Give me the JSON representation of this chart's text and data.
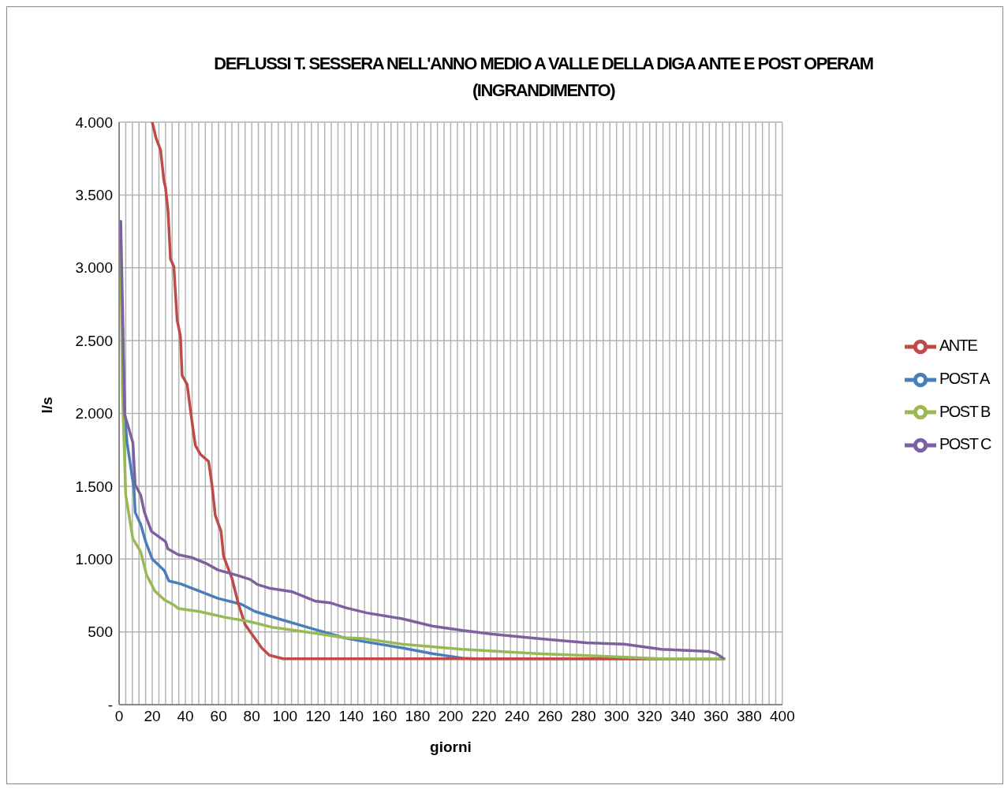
{
  "chart_data": {
    "type": "line",
    "title": "DEFLUSSI T. SESSERA NELL'ANNO MEDIO A VALLE DELLA DIGA ANTE E POST OPERAM (INGRANDIMENTO)",
    "xlabel": "giorni",
    "ylabel": "l/s",
    "xlim": [
      0,
      400
    ],
    "xticks": [
      0,
      {
        "value": 4,
        "label": null
      },
      {
        "value": 8,
        "label": null
      },
      {
        "value": 12,
        "label": null
      },
      {
        "value": 16,
        "label": null
      },
      20,
      {
        "value": 24,
        "label": null
      },
      {
        "value": 28,
        "label": null
      },
      {
        "value": 32,
        "label": null
      },
      {
        "value": 36,
        "label": null
      },
      40,
      {
        "value": 44,
        "label": null
      },
      {
        "value": 48,
        "label": null
      },
      {
        "value": 52,
        "label": null
      },
      {
        "value": 56,
        "label": null
      },
      60,
      {
        "value": 64,
        "label": null
      },
      {
        "value": 68,
        "label": null
      },
      {
        "value": 72,
        "label": null
      },
      {
        "value": 76,
        "label": null
      },
      80,
      {
        "value": 84,
        "label": null
      },
      {
        "value": 88,
        "label": null
      },
      {
        "value": 92,
        "label": null
      },
      {
        "value": 96,
        "label": null
      },
      100,
      {
        "value": 104,
        "label": null
      },
      {
        "value": 108,
        "label": null
      },
      {
        "value": 112,
        "label": null
      },
      {
        "value": 116,
        "label": null
      },
      120,
      {
        "value": 124,
        "label": null
      },
      {
        "value": 128,
        "label": null
      },
      {
        "value": 132,
        "label": null
      },
      {
        "value": 136,
        "label": null
      },
      140,
      {
        "value": 144,
        "label": null
      },
      {
        "value": 148,
        "label": null
      },
      {
        "value": 152,
        "label": null
      },
      {
        "value": 156,
        "label": null
      },
      160,
      {
        "value": 164,
        "label": null
      },
      {
        "value": 168,
        "label": null
      },
      {
        "value": 172,
        "label": null
      },
      {
        "value": 176,
        "label": null
      },
      180,
      {
        "value": 184,
        "label": null
      },
      {
        "value": 188,
        "label": null
      },
      {
        "value": 192,
        "label": null
      },
      {
        "value": 196,
        "label": null
      },
      200,
      {
        "value": 204,
        "label": null
      },
      {
        "value": 208,
        "label": null
      },
      {
        "value": 212,
        "label": null
      },
      {
        "value": 216,
        "label": null
      },
      220,
      {
        "value": 224,
        "label": null
      },
      {
        "value": 228,
        "label": null
      },
      {
        "value": 232,
        "label": null
      },
      {
        "value": 236,
        "label": null
      },
      240,
      {
        "value": 244,
        "label": null
      },
      {
        "value": 248,
        "label": null
      },
      {
        "value": 252,
        "label": null
      },
      {
        "value": 256,
        "label": null
      },
      260,
      {
        "value": 264,
        "label": null
      },
      {
        "value": 268,
        "label": null
      },
      {
        "value": 272,
        "label": null
      },
      {
        "value": 276,
        "label": null
      },
      280,
      {
        "value": 284,
        "label": null
      },
      {
        "value": 288,
        "label": null
      },
      {
        "value": 292,
        "label": null
      },
      {
        "value": 296,
        "label": null
      },
      300,
      {
        "value": 304,
        "label": null
      },
      {
        "value": 308,
        "label": null
      },
      {
        "value": 312,
        "label": null
      },
      {
        "value": 316,
        "label": null
      },
      320,
      {
        "value": 324,
        "label": null
      },
      {
        "value": 328,
        "label": null
      },
      {
        "value": 332,
        "label": null
      },
      {
        "value": 336,
        "label": null
      },
      340,
      {
        "value": 344,
        "label": null
      },
      {
        "value": 348,
        "label": null
      },
      {
        "value": 352,
        "label": null
      },
      {
        "value": 356,
        "label": null
      },
      360,
      {
        "value": 364,
        "label": null
      },
      {
        "value": 368,
        "label": null
      },
      {
        "value": 372,
        "label": null
      },
      {
        "value": 376,
        "label": null
      },
      380,
      {
        "value": 384,
        "label": null
      },
      {
        "value": 388,
        "label": null
      },
      {
        "value": 392,
        "label": null
      },
      {
        "value": 396,
        "label": null
      },
      400
    ],
    "ylim": [
      0,
      4000
    ],
    "yticks": [
      {
        "value": 0,
        "label": "-"
      },
      500,
      {
        "value": 1000,
        "label": "1.000"
      },
      {
        "value": 1500,
        "label": "1.500"
      },
      {
        "value": 2000,
        "label": "2.000"
      },
      {
        "value": 2500,
        "label": "2.500"
      },
      {
        "value": 3000,
        "label": "3.000"
      },
      {
        "value": 3500,
        "label": "3.500"
      },
      {
        "value": 4000,
        "label": "4.000"
      }
    ],
    "grid": true,
    "legend": "right",
    "marker": "none",
    "line_style": "solid",
    "series": [
      {
        "name": "POST A",
        "color": "#4a7ebb",
        "x": [
          1,
          3.4,
          4.8,
          9,
          9.7,
          13,
          16,
          20,
          27.3,
          30,
          37,
          48.3,
          59.6,
          73.6,
          82,
          96,
          118.6,
          135.4,
          146.7,
          170.8,
          188.8,
          206.9,
          215,
          365
        ],
        "values": [
          3100,
          1980,
          1800,
          1480,
          1320,
          1240,
          1120,
          1000,
          920,
          850,
          830,
          780,
          730,
          690,
          640,
          590,
          515,
          460,
          435,
          390,
          350,
          320,
          315,
          315
        ]
      },
      {
        "name": "ANTE",
        "color": "#be4b48",
        "x": [
          20,
          22.3,
          25,
          27,
          28,
          29.5,
          31,
          33,
          35,
          37,
          38,
          41,
          44,
          46,
          49,
          54,
          56,
          58,
          61.5,
          63,
          68,
          72,
          76,
          81,
          86,
          90.6,
          99,
          365
        ],
        "values": [
          4000,
          3890,
          3810,
          3600,
          3550,
          3390,
          3060,
          3010,
          2640,
          2530,
          2260,
          2200,
          1940,
          1780,
          1720,
          1670,
          1510,
          1300,
          1190,
          1020,
          870,
          690,
          550,
          470,
          390,
          340,
          315,
          315
        ]
      },
      {
        "name": "POST B",
        "color": "#98b954",
        "x": [
          1,
          2,
          4,
          8.3,
          13,
          16.6,
          21.6,
          27.3,
          33,
          35.7,
          48.3,
          63.8,
          79,
          93,
          118.6,
          135.4,
          146.7,
          170.8,
          206.9,
          252,
          297,
          327,
          365
        ],
        "values": [
          3130,
          2150,
          1440,
          1140,
          1050,
          890,
          780,
          720,
          685,
          660,
          640,
          600,
          570,
          530,
          490,
          460,
          455,
          415,
          380,
          350,
          330,
          315,
          315
        ]
      },
      {
        "name": "POST C",
        "color": "#7d60a0",
        "x": [
          1,
          3.4,
          8.3,
          9.7,
          13,
          15.3,
          19.5,
          28,
          29.4,
          35.7,
          44,
          52.5,
          59.6,
          70.8,
          79,
          83.5,
          90.5,
          104.5,
          118.6,
          127,
          136.9,
          149.5,
          170.8,
          188.8,
          206.9,
          225,
          252,
          282,
          304.7,
          327,
          355.9,
          360.4,
          364.2
        ],
        "values": [
          3320,
          1990,
          1800,
          1510,
          1440,
          1320,
          1190,
          1120,
          1070,
          1030,
          1010,
          970,
          925,
          890,
          860,
          825,
          800,
          775,
          710,
          700,
          665,
          630,
          590,
          540,
          510,
          485,
          455,
          425,
          415,
          380,
          365,
          350,
          320
        ]
      }
    ]
  }
}
